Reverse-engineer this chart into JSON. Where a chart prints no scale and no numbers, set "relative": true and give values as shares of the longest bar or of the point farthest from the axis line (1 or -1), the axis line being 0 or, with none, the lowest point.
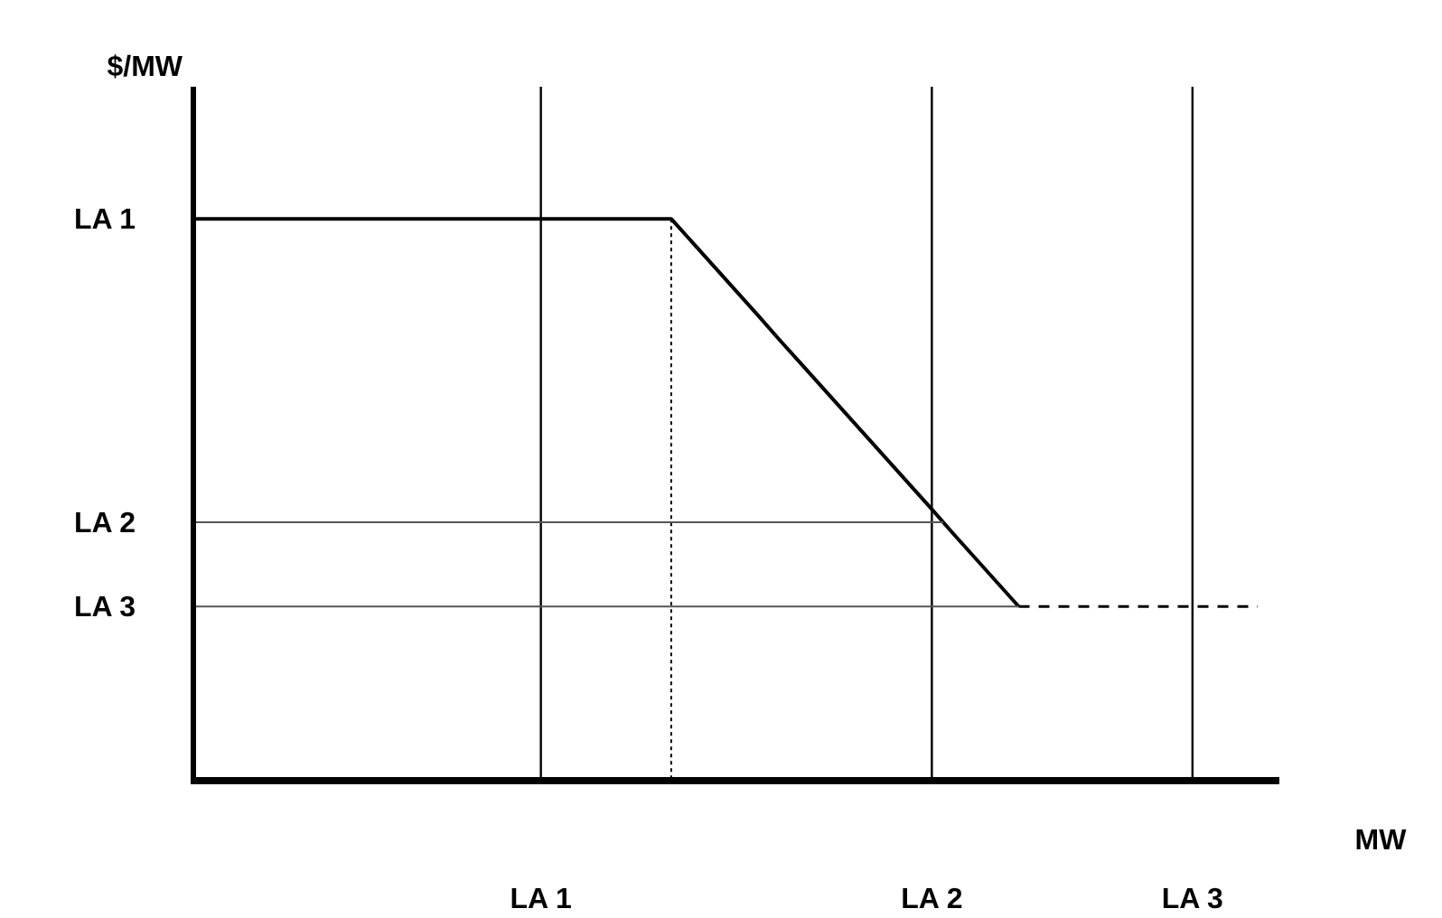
{
  "chart_data": {
    "type": "line",
    "xlabel": "MW",
    "ylabel": "$/MW",
    "relative": true,
    "categories": [
      null,
      null,
      null,
      null,
      null,
      null,
      null,
      null,
      null,
      null,
      null,
      null,
      null,
      null,
      null,
      null,
      "LA 1",
      null,
      null,
      null,
      null,
      null,
      null,
      null,
      null,
      null,
      null,
      null,
      null,
      null,
      null,
      null,
      null,
      null,
      "LA 2",
      null,
      null,
      null,
      null,
      null,
      null,
      null,
      null,
      null,
      null,
      null,
      "LA 3",
      null,
      null,
      null
    ],
    "grid": "x",
    "marker": "none",
    "series": [
      {
        "color": "#000000",
        "line_style": "solid",
        "values": [
          1,
          1,
          1,
          1,
          1,
          1,
          1,
          1,
          1,
          1,
          1,
          1,
          1,
          1,
          1,
          1,
          1,
          1,
          1,
          1,
          1,
          1,
          1,
          0.957,
          0.914,
          0.871,
          0.828,
          0.784,
          0.741,
          0.698,
          0.655,
          0.612,
          0.569,
          0.526,
          0.483,
          0.439,
          0.396,
          0.353,
          0.31,
          null,
          null,
          null,
          null,
          null,
          null,
          null,
          null,
          null,
          null,
          null
        ]
      },
      {
        "color": "#000000",
        "line_style": "dashed",
        "values": [
          null,
          null,
          null,
          null,
          null,
          null,
          null,
          null,
          null,
          null,
          null,
          null,
          null,
          null,
          null,
          null,
          null,
          null,
          null,
          null,
          null,
          null,
          null,
          null,
          null,
          null,
          null,
          null,
          null,
          null,
          null,
          null,
          null,
          null,
          null,
          null,
          null,
          null,
          0.31,
          0.31,
          0.31,
          0.31,
          0.31,
          0.31,
          0.31,
          0.31,
          0.31,
          0.31,
          0.31,
          0.31
        ]
      }
    ],
    "annotations": [
      "LA 1"
    ],
    "ref_lines": [
      {
        "axis": "y",
        "value": 0.46,
        "label": "LA 2",
        "color": "#555555"
      },
      {
        "axis": "y",
        "value": 0.31,
        "label": "LA 3",
        "color": "#555555"
      }
    ]
  }
}
